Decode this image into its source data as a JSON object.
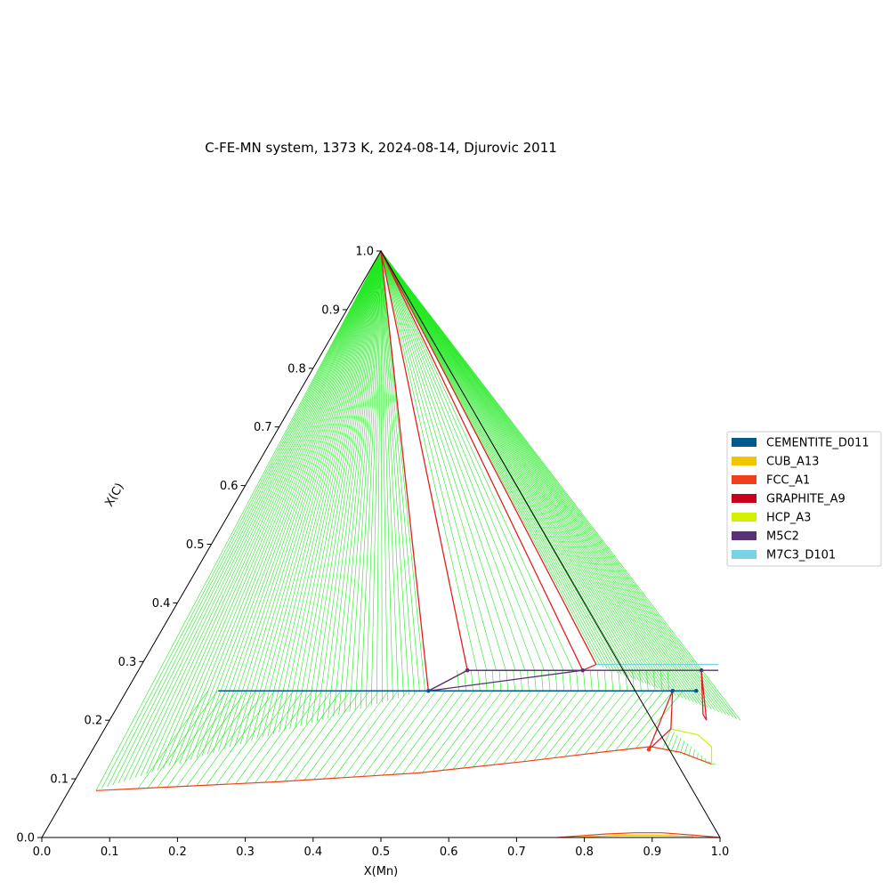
{
  "chart_data": {
    "type": "ternary",
    "title": "C-FE-MN system, 1373 K, 2024-08-14, Djurovic 2011",
    "xlabel": "X(Mn)",
    "ylabel": "X(C)",
    "xlim": [
      0,
      1
    ],
    "ylim": [
      0,
      1
    ],
    "x_ticks": [
      "0.0",
      "0.1",
      "0.2",
      "0.3",
      "0.4",
      "0.5",
      "0.6",
      "0.7",
      "0.8",
      "0.9",
      "1.0"
    ],
    "y_ticks": [
      "0.0",
      "0.1",
      "0.2",
      "0.3",
      "0.4",
      "0.5",
      "0.6",
      "0.7",
      "0.8",
      "0.9",
      "1.0"
    ],
    "legend_position": "right",
    "legend": [
      {
        "name": "CEMENTITE_D011",
        "color": "#005a8c"
      },
      {
        "name": "CUB_A13",
        "color": "#f2c500"
      },
      {
        "name": "FCC_A1",
        "color": "#f0401a"
      },
      {
        "name": "GRAPHITE_A9",
        "color": "#c8001e"
      },
      {
        "name": "HCP_A3",
        "color": "#d2f000"
      },
      {
        "name": "M5C2",
        "color": "#5a3278"
      },
      {
        "name": "M7C3_D101",
        "color": "#78d2e6"
      }
    ],
    "tieline_color": "#22e822",
    "phase_boundaries": [
      {
        "phase": "FCC_A1",
        "points": [
          [
            0.04,
            0.08
          ],
          [
            0.3,
            0.095
          ],
          [
            0.5,
            0.11
          ],
          [
            0.65,
            0.13
          ],
          [
            0.75,
            0.145
          ],
          [
            0.82,
            0.155
          ],
          [
            0.87,
            0.145
          ],
          [
            0.925,
            0.125
          ]
        ]
      },
      {
        "phase": "FCC_A1",
        "points": [
          [
            0.76,
            0.0
          ],
          [
            0.83,
            0.006
          ],
          [
            0.87,
            0.008
          ],
          [
            0.91,
            0.008
          ],
          [
            0.96,
            0.004
          ],
          [
            1.0,
            0.0
          ]
        ]
      },
      {
        "phase": "HCP_A3",
        "points": [
          [
            0.835,
            0.185
          ],
          [
            0.88,
            0.175
          ],
          [
            0.91,
            0.155
          ],
          [
            0.925,
            0.125
          ]
        ]
      },
      {
        "phase": "CUB_A13",
        "points": [
          [
            0.79,
            0.0
          ],
          [
            0.85,
            0.004
          ],
          [
            0.9,
            0.004
          ],
          [
            0.96,
            0.002
          ]
        ]
      }
    ],
    "three_phase_triangles": [
      {
        "phases": [
          "GRAPHITE_A9",
          "FCC_A1",
          "CEMENTITE_D011"
        ],
        "points": [
          [
            0.0,
            1.0
          ],
          [
            0.445,
            0.25
          ],
          [
            0.485,
            0.285
          ]
        ],
        "color": "#e02020"
      },
      {
        "phases": [
          "GRAPHITE_A9",
          "M7C3_D101",
          "M5C2"
        ],
        "points": [
          [
            0.0,
            1.0
          ],
          [
            0.655,
            0.285
          ],
          [
            0.67,
            0.295
          ]
        ],
        "color": "#e02020"
      },
      {
        "phases": [
          "FCC_A1",
          "CEMENTITE_D011",
          "M5C2"
        ],
        "points": [
          [
            0.445,
            0.25
          ],
          [
            0.485,
            0.285
          ],
          [
            0.655,
            0.285
          ]
        ],
        "color": "#5a3278"
      },
      {
        "phases": [
          "FCC_A1",
          "M7C3_D101",
          "HCP_A3"
        ],
        "points": [
          [
            0.805,
            0.25
          ],
          [
            0.82,
            0.15
          ],
          [
            0.835,
            0.185
          ]
        ],
        "color": "#e02020"
      },
      {
        "phases": [
          "M7C3_D101",
          "HCP_A3",
          "FCC_A1"
        ],
        "points": [
          [
            0.83,
            0.285
          ],
          [
            0.87,
            0.21
          ],
          [
            0.88,
            0.2
          ]
        ],
        "color": "#e02020"
      }
    ],
    "horizontal_tielines": [
      {
        "phase": "CEMENTITE_D011",
        "x1": 0.135,
        "x2": 0.84,
        "y": 0.25
      },
      {
        "phase": "M5C2",
        "x1": 0.485,
        "x2": 0.855,
        "y": 0.285
      },
      {
        "phase": "M7C3_D101",
        "x1": 0.67,
        "x2": 0.85,
        "y": 0.295
      }
    ],
    "markers": [
      {
        "phase": "CEMENTITE_D011",
        "x": 0.445,
        "y": 0.25
      },
      {
        "phase": "M5C2",
        "x": 0.485,
        "y": 0.285
      },
      {
        "phase": "M5C2",
        "x": 0.655,
        "y": 0.285
      },
      {
        "phase": "M5C2",
        "x": 0.83,
        "y": 0.285
      },
      {
        "phase": "CEMENTITE_D011",
        "x": 0.805,
        "y": 0.25
      },
      {
        "phase": "CEMENTITE_D011",
        "x": 0.84,
        "y": 0.25
      },
      {
        "phase": "FCC_A1",
        "x": 0.82,
        "y": 0.15
      }
    ]
  }
}
